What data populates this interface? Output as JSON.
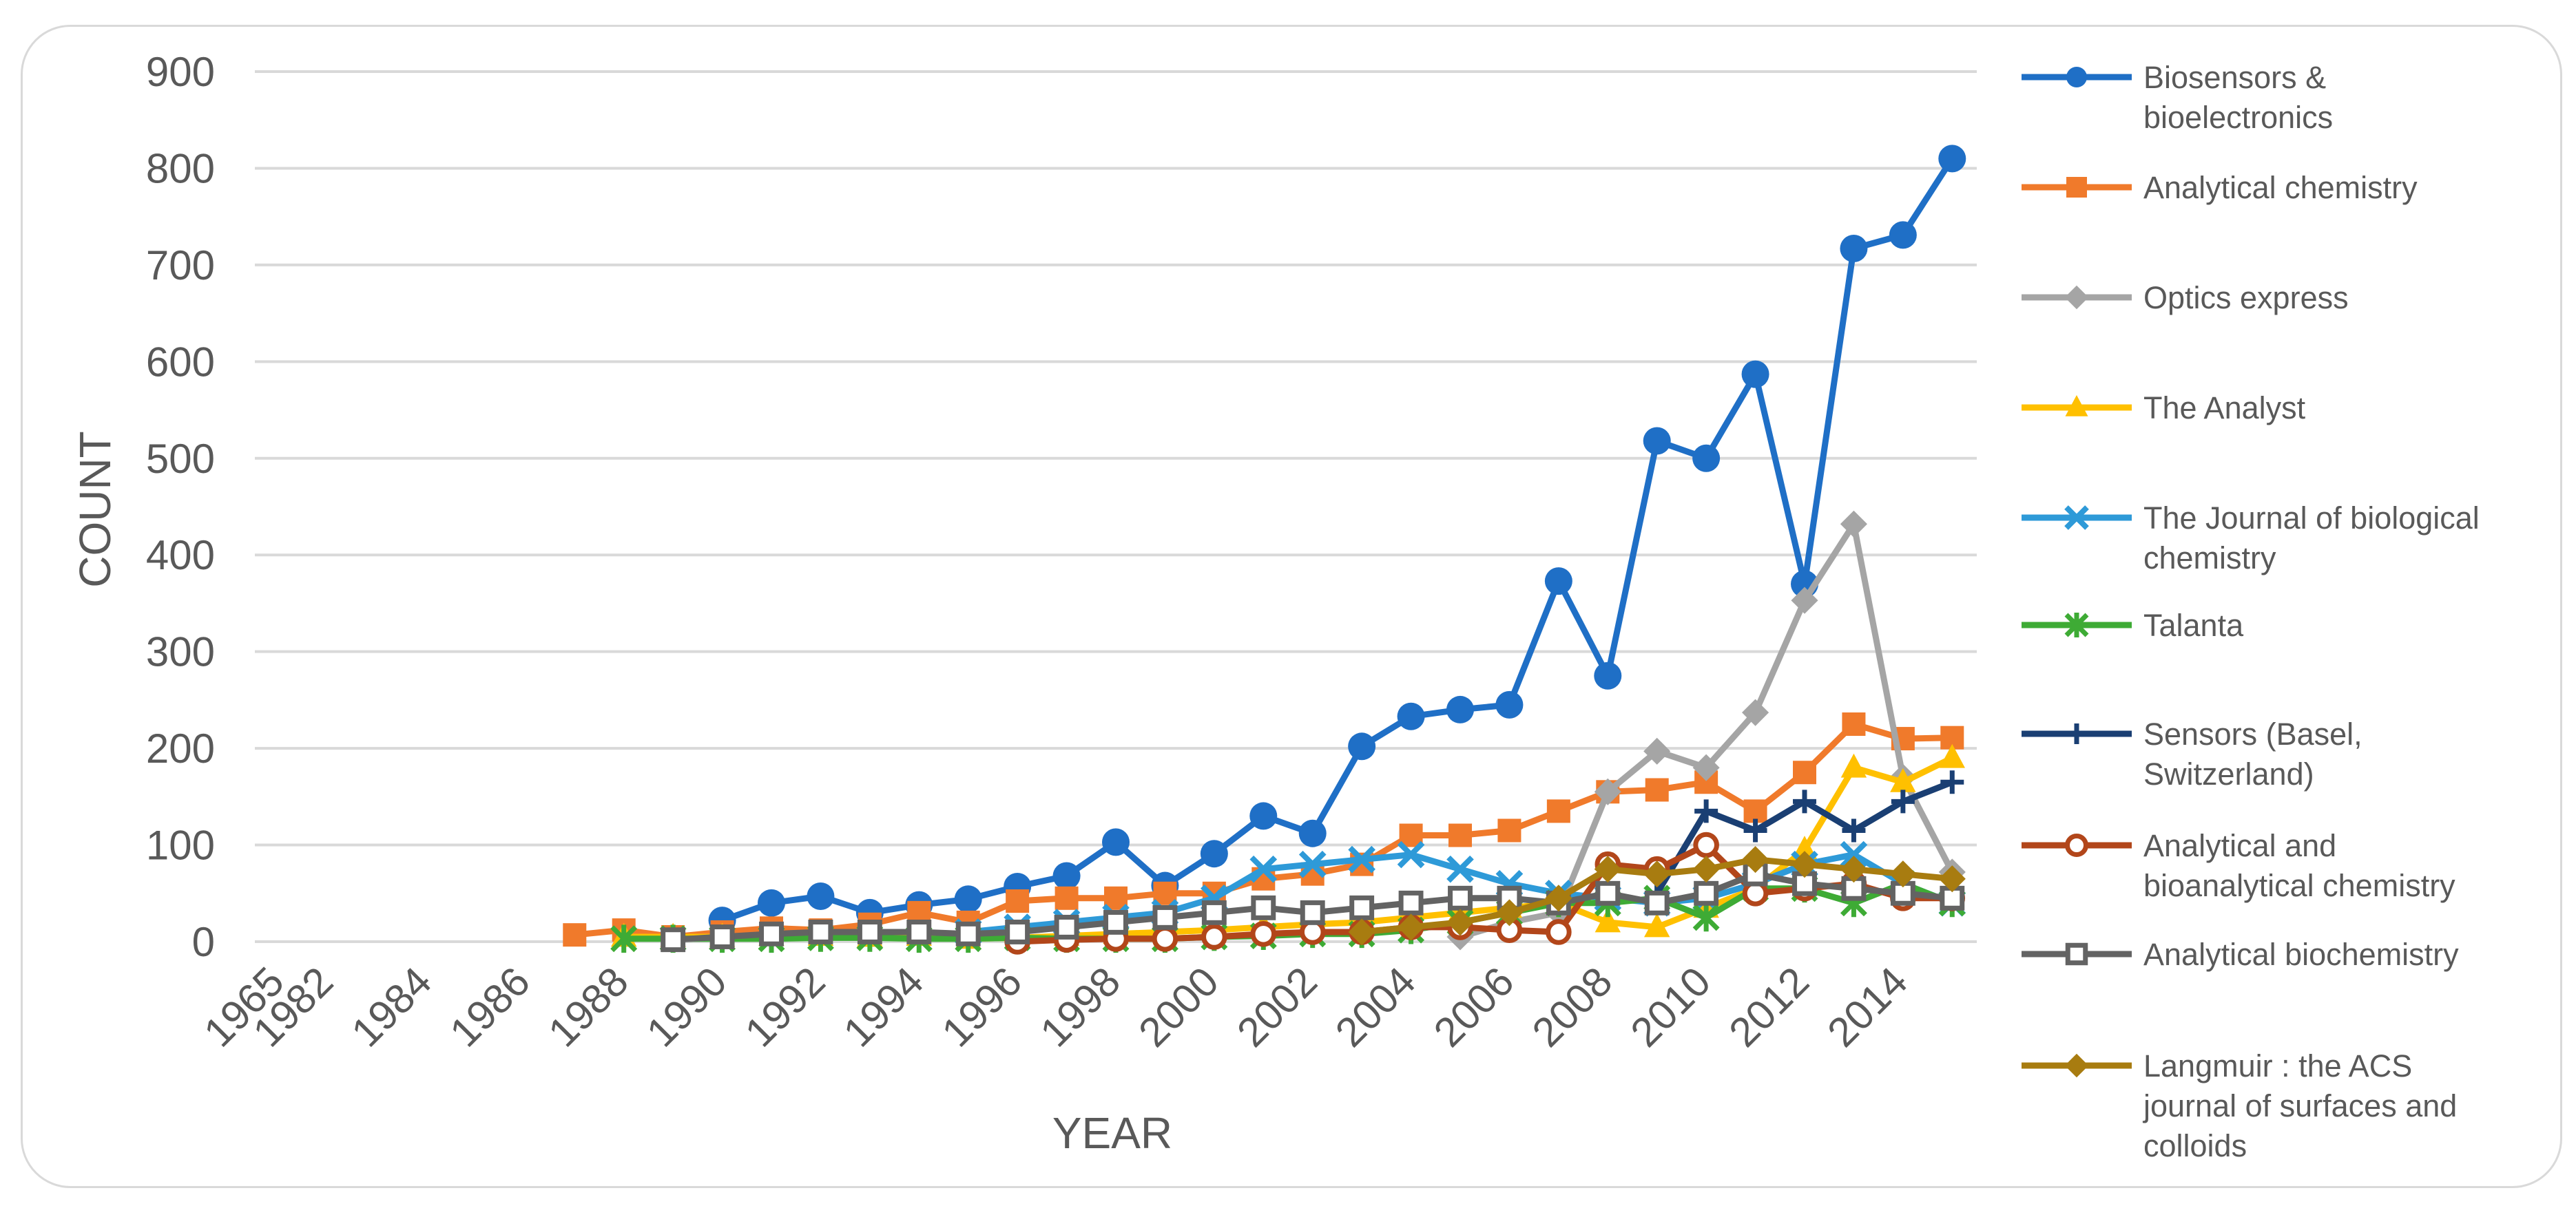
{
  "chart_data": {
    "type": "line",
    "title": "",
    "xlabel": "YEAR",
    "ylabel": "COUNT",
    "ylim": [
      0,
      900
    ],
    "yticks": [
      "0",
      "100",
      "200",
      "300",
      "400",
      "500",
      "600",
      "700",
      "800",
      "900"
    ],
    "xticks": [
      "1965",
      "1982",
      "1984",
      "1986",
      "1988",
      "1990",
      "1992",
      "1994",
      "1996",
      "1998",
      "2000",
      "2002",
      "2004",
      "2006",
      "2008",
      "2010",
      "2012",
      "2014"
    ],
    "categories": [
      "1965",
      "1982",
      "1983",
      "1984",
      "1985",
      "1986",
      "1987",
      "1988",
      "1989",
      "1990",
      "1991",
      "1992",
      "1993",
      "1994",
      "1995",
      "1996",
      "1997",
      "1998",
      "1999",
      "2000",
      "2001",
      "2002",
      "2003",
      "2004",
      "2005",
      "2006",
      "2007",
      "2008",
      "2009",
      "2010",
      "2011",
      "2012",
      "2013",
      "2014",
      "2015"
    ],
    "legend_position": "right",
    "grid": true,
    "series": [
      {
        "name": "Biosensors & bioelectronics",
        "color": "#1f6fc6",
        "marker": "circle",
        "values": [
          null,
          null,
          null,
          null,
          null,
          null,
          null,
          null,
          null,
          22,
          40,
          47,
          30,
          38,
          44,
          57,
          68,
          103,
          58,
          91,
          130,
          112,
          202,
          233,
          240,
          245,
          373,
          275,
          518,
          500,
          587,
          370,
          717,
          731,
          810
        ]
      },
      {
        "name": "Analytical chemistry",
        "color": "#f07a2b",
        "marker": "square",
        "values": [
          null,
          null,
          null,
          null,
          null,
          null,
          7,
          12,
          5,
          10,
          14,
          12,
          18,
          30,
          20,
          42,
          45,
          45,
          50,
          50,
          65,
          70,
          80,
          110,
          110,
          115,
          135,
          155,
          157,
          165,
          135,
          175,
          225,
          210,
          211
        ]
      },
      {
        "name": "Optics express",
        "color": "#a5a5a5",
        "marker": "diamond",
        "values": [
          null,
          null,
          null,
          null,
          null,
          null,
          null,
          null,
          null,
          null,
          null,
          null,
          null,
          null,
          null,
          null,
          null,
          null,
          null,
          null,
          null,
          null,
          null,
          null,
          5,
          20,
          30,
          155,
          197,
          180,
          237,
          353,
          432,
          170,
          72
        ]
      },
      {
        "name": "The Analyst",
        "color": "#ffc000",
        "marker": "triangle",
        "values": [
          null,
          null,
          null,
          null,
          null,
          null,
          null,
          5,
          5,
          5,
          6,
          6,
          5,
          6,
          3,
          4,
          6,
          8,
          10,
          12,
          15,
          18,
          20,
          25,
          30,
          35,
          40,
          20,
          15,
          35,
          55,
          95,
          180,
          165,
          190
        ]
      },
      {
        "name": "The Journal of biological chemistry",
        "color": "#2e9ad8",
        "marker": "x",
        "values": [
          null,
          null,
          null,
          null,
          null,
          null,
          null,
          null,
          null,
          null,
          null,
          null,
          null,
          null,
          10,
          15,
          20,
          25,
          30,
          45,
          75,
          80,
          85,
          90,
          75,
          60,
          50,
          45,
          40,
          45,
          60,
          80,
          90,
          60,
          40
        ]
      },
      {
        "name": "Talanta",
        "color": "#3eab35",
        "marker": "asterisk",
        "values": [
          null,
          null,
          null,
          null,
          null,
          null,
          null,
          3,
          3,
          3,
          3,
          4,
          4,
          3,
          3,
          4,
          3,
          3,
          3,
          5,
          6,
          8,
          8,
          12,
          20,
          30,
          40,
          40,
          45,
          25,
          55,
          55,
          40,
          60,
          40
        ]
      },
      {
        "name": "Sensors (Basel, Switzerland)",
        "color": "#1a3f73",
        "marker": "plus",
        "values": [
          null,
          null,
          null,
          null,
          null,
          null,
          null,
          null,
          null,
          null,
          null,
          null,
          null,
          null,
          null,
          null,
          null,
          null,
          null,
          null,
          null,
          null,
          null,
          null,
          null,
          null,
          null,
          null,
          50,
          135,
          115,
          145,
          115,
          145,
          165
        ]
      },
      {
        "name": "Analytical and bioanalytical chemistry",
        "color": "#b2461a",
        "marker": "circle-open",
        "values": [
          null,
          null,
          null,
          null,
          null,
          null,
          null,
          null,
          null,
          null,
          null,
          null,
          null,
          null,
          null,
          0,
          2,
          3,
          3,
          5,
          8,
          10,
          10,
          15,
          15,
          12,
          10,
          80,
          75,
          100,
          50,
          55,
          60,
          45,
          45
        ]
      },
      {
        "name": "Analytical biochemistry",
        "color": "#636363",
        "marker": "square-open",
        "values": [
          null,
          null,
          null,
          null,
          null,
          null,
          null,
          null,
          2,
          5,
          8,
          10,
          10,
          10,
          8,
          10,
          15,
          20,
          25,
          30,
          35,
          30,
          35,
          40,
          45,
          45,
          40,
          50,
          40,
          50,
          70,
          60,
          55,
          50,
          45
        ]
      },
      {
        "name": "Langmuir : the ACS journal of surfaces and colloids",
        "color": "#a87c10",
        "marker": "diamond",
        "values": [
          null,
          null,
          null,
          null,
          null,
          null,
          null,
          null,
          null,
          null,
          null,
          null,
          null,
          null,
          null,
          null,
          null,
          null,
          null,
          null,
          null,
          null,
          10,
          15,
          20,
          30,
          45,
          75,
          70,
          75,
          85,
          80,
          75,
          70,
          65
        ]
      }
    ]
  }
}
